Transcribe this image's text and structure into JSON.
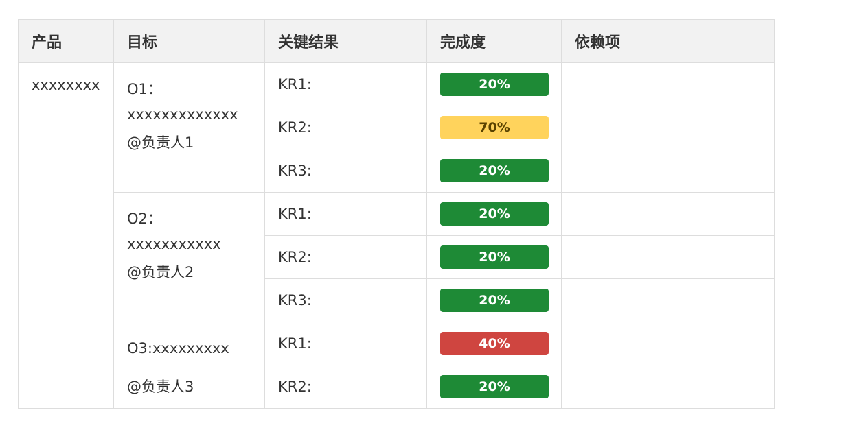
{
  "headers": [
    "产品",
    "目标",
    "关键结果",
    "完成度",
    "依赖项"
  ],
  "product": "xxxxxxxx",
  "objectives": [
    {
      "lines": [
        "O1：",
        "xxxxxxxxxxxxx"
      ],
      "owner": "@负责人1",
      "key_results": [
        {
          "label": "KR1:",
          "progress": "20%",
          "progress_value": 0.2,
          "color": "#1e8a36",
          "dependency": ""
        },
        {
          "label": "KR2:",
          "progress": "70%",
          "progress_value": 0.7,
          "color": "#ffd35c",
          "dependency": ""
        },
        {
          "label": "KR3:",
          "progress": "20%",
          "progress_value": 0.2,
          "color": "#1e8a36",
          "dependency": ""
        }
      ]
    },
    {
      "lines": [
        "O2：",
        "xxxxxxxxxxx"
      ],
      "owner": "@负责人2",
      "key_results": [
        {
          "label": "KR1:",
          "progress": "20%",
          "progress_value": 0.2,
          "color": "#1e8a36",
          "dependency": ""
        },
        {
          "label": "KR2:",
          "progress": "20%",
          "progress_value": 0.2,
          "color": "#1e8a36",
          "dependency": ""
        },
        {
          "label": "KR3:",
          "progress": "20%",
          "progress_value": 0.2,
          "color": "#1e8a36",
          "dependency": ""
        }
      ]
    },
    {
      "lines": [
        "O3:xxxxxxxxx"
      ],
      "owner": "@负责人3",
      "key_results": [
        {
          "label": "KR1:",
          "progress": "40%",
          "progress_value": 0.4,
          "color": "#cf4540",
          "dependency": ""
        },
        {
          "label": "KR2:",
          "progress": "20%",
          "progress_value": 0.2,
          "color": "#1e8a36",
          "dependency": ""
        }
      ]
    }
  ]
}
